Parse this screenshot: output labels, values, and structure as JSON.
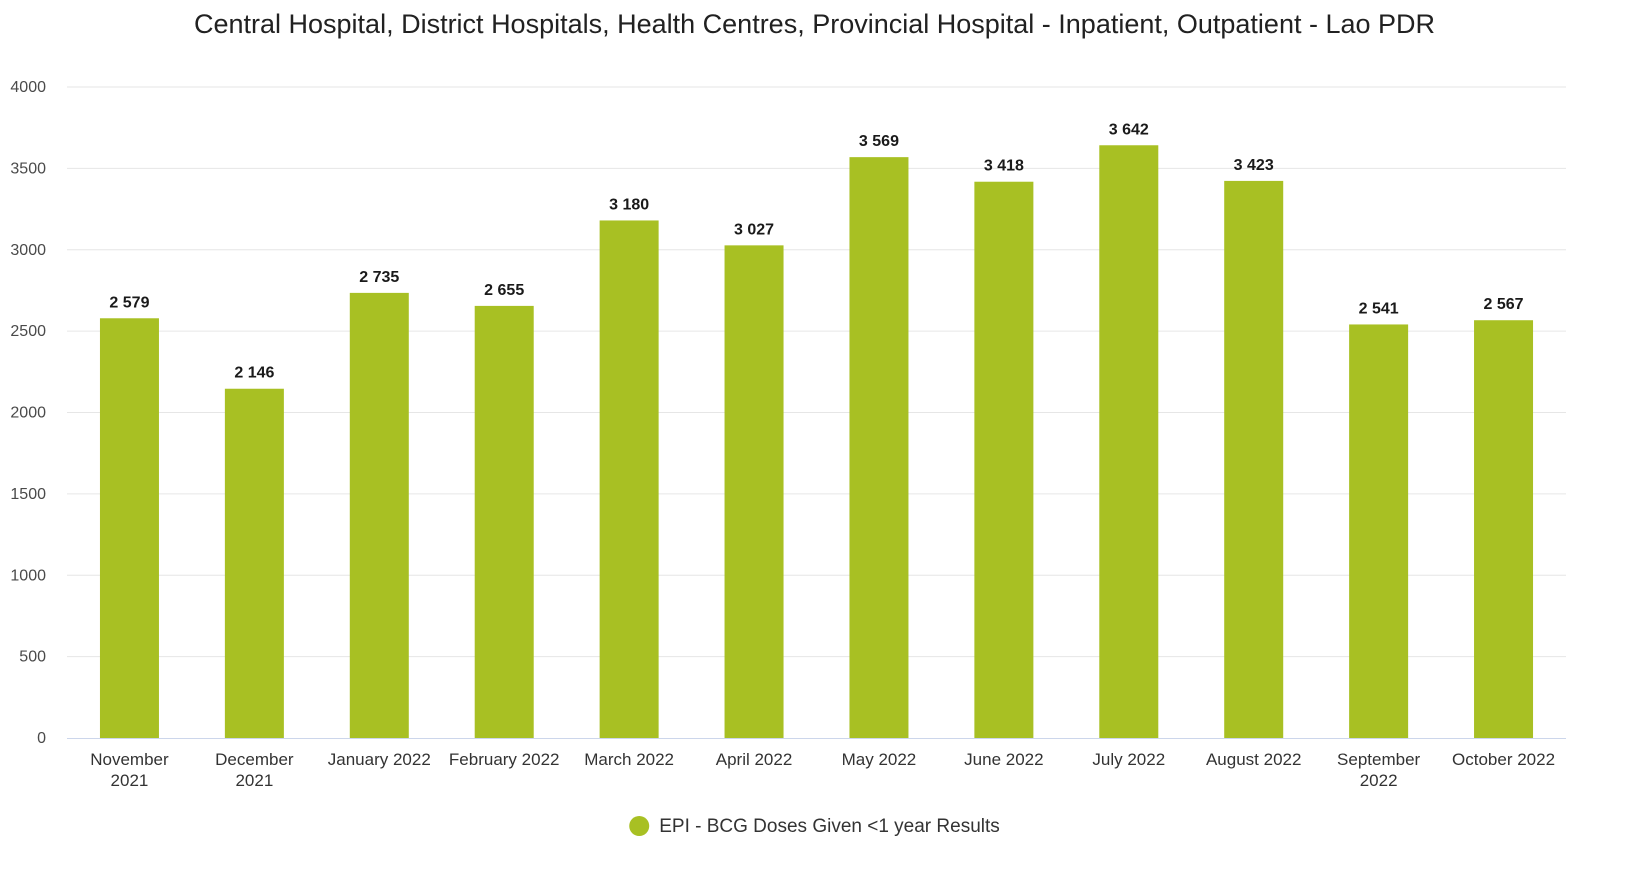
{
  "chart_data": {
    "type": "bar",
    "title": "Central Hospital, District Hospitals, Health Centres, Provincial Hospital - Inpatient, Outpatient - Lao PDR",
    "xlabel": "",
    "ylabel": "",
    "categories": [
      "November 2021",
      "December 2021",
      "January 2022",
      "February 2022",
      "March 2022",
      "April 2022",
      "May 2022",
      "June 2022",
      "July 2022",
      "August 2022",
      "September 2022",
      "October 2022"
    ],
    "series": [
      {
        "name": "EPI - BCG Doses Given <1 year Results",
        "values": [
          2579,
          2146,
          2735,
          2655,
          3180,
          3027,
          3569,
          3418,
          3642,
          3423,
          2541,
          2567
        ],
        "labels": [
          "2 579",
          "2 146",
          "2 735",
          "2 655",
          "3 180",
          "3 027",
          "3 569",
          "3 418",
          "3 642",
          "3 423",
          "2 541",
          "2 567"
        ],
        "color": "#a8c023"
      }
    ],
    "yticks": [
      "0",
      "500",
      "1000",
      "1500",
      "2000",
      "2500",
      "3000",
      "3500",
      "4000"
    ],
    "ylim": [
      0,
      4000
    ],
    "grid": true,
    "legend_position": "bottom-center"
  },
  "colors": {
    "bar": "#a8c023",
    "grid": "#e6e6e6",
    "axis": "#ccd6eb"
  }
}
